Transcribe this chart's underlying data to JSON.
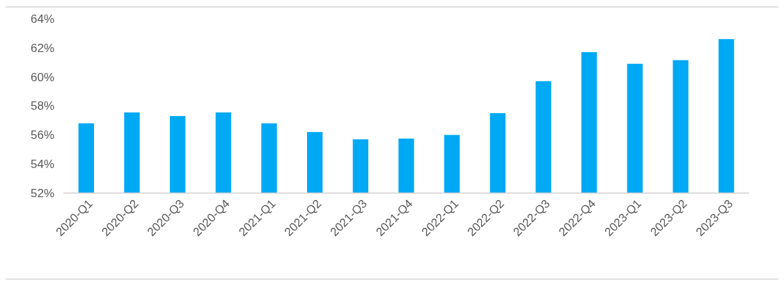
{
  "chart_data": {
    "type": "bar",
    "categories": [
      "2020-Q1",
      "2020-Q2",
      "2020-Q3",
      "2020-Q4",
      "2021-Q1",
      "2021-Q2",
      "2021-Q3",
      "2021-Q4",
      "2022-Q1",
      "2022-Q2",
      "2022-Q3",
      "2022-Q4",
      "2023-Q1",
      "2023-Q2",
      "2023-Q3"
    ],
    "values": [
      56.8,
      57.55,
      57.3,
      57.55,
      56.8,
      56.2,
      55.7,
      55.75,
      56.0,
      57.5,
      59.7,
      61.7,
      60.9,
      61.15,
      62.6
    ],
    "color": "#00a9f4",
    "ylim": [
      52,
      64
    ],
    "yticks": [
      {
        "value": 52,
        "label": "52%"
      },
      {
        "value": 54,
        "label": "54%"
      },
      {
        "value": 56,
        "label": "56%"
      },
      {
        "value": 58,
        "label": "58%"
      },
      {
        "value": 60,
        "label": "60%"
      },
      {
        "value": 62,
        "label": "62%"
      },
      {
        "value": 64,
        "label": "64%"
      }
    ],
    "grid": false
  }
}
